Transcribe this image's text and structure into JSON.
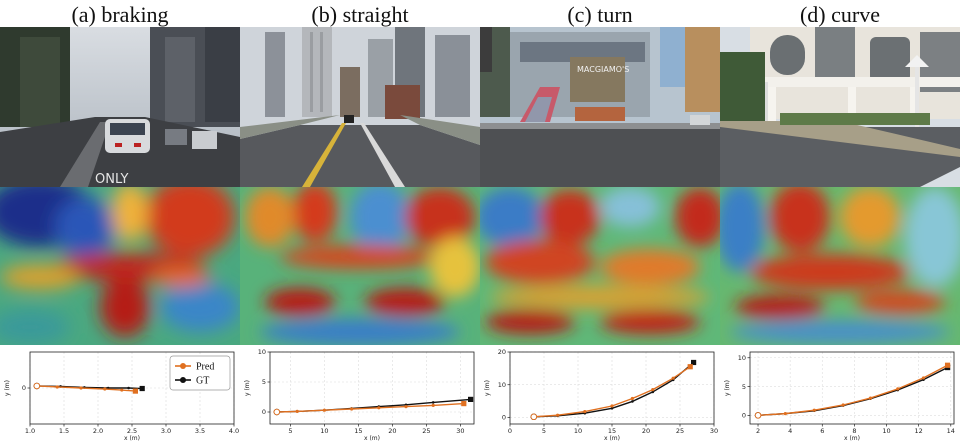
{
  "figure": {
    "panels": [
      {
        "id": "a",
        "title": "(a) braking",
        "scene": "city street with car ahead"
      },
      {
        "id": "b",
        "title": "(b) straight",
        "scene": "bridge road with skyline"
      },
      {
        "id": "c",
        "title": "(c) turn",
        "scene": "intersection with buildings"
      },
      {
        "id": "d",
        "title": "(d) curve",
        "scene": "curved road by white building"
      }
    ],
    "scene_text": {
      "road_marking_a": "ONLY",
      "building_sign_c": "MACGIAMO'S"
    },
    "colors": {
      "pred": "#e07020",
      "gt": "#111111",
      "grid": "#dddddd"
    }
  },
  "chart_data": [
    {
      "type": "line",
      "xlabel": "x (m)",
      "ylabel": "y (m)",
      "xlim": [
        1.0,
        4.0
      ],
      "ylim": [
        -0.35,
        0.35
      ],
      "xticks": [
        1.0,
        1.5,
        2.0,
        2.5,
        3.0,
        3.5,
        4.0
      ],
      "xtick_labels": [
        "1.0",
        "1.5",
        "2.0",
        "2.5",
        "3.0",
        "3.5",
        "4.0"
      ],
      "yticks": [
        0
      ],
      "ytick_labels": [
        "0"
      ],
      "legend": {
        "placement": "right",
        "entries": [
          "Pred",
          "GT"
        ]
      },
      "series": [
        {
          "name": "Pred",
          "x": [
            1.1,
            1.4,
            1.75,
            2.1,
            2.35,
            2.55
          ],
          "y": [
            0.02,
            0.01,
            0.0,
            -0.01,
            -0.02,
            -0.03
          ]
        },
        {
          "name": "GT",
          "x": [
            1.1,
            1.45,
            1.8,
            2.15,
            2.45,
            2.65
          ],
          "y": [
            0.02,
            0.015,
            0.005,
            0.0,
            0.0,
            -0.005
          ]
        }
      ]
    },
    {
      "type": "line",
      "xlabel": "x (m)",
      "ylabel": "y (m)",
      "xlim": [
        2,
        32
      ],
      "ylim": [
        -2,
        10
      ],
      "xticks": [
        5,
        10,
        15,
        20,
        25,
        30
      ],
      "xtick_labels": [
        "5",
        "10",
        "15",
        "20",
        "25",
        "30"
      ],
      "yticks": [
        0,
        5,
        10
      ],
      "ytick_labels": [
        "0",
        "5",
        "10"
      ],
      "series": [
        {
          "name": "Pred",
          "x": [
            3,
            6,
            10,
            14,
            18,
            22,
            26,
            30.5
          ],
          "y": [
            0,
            0.1,
            0.3,
            0.5,
            0.7,
            0.9,
            1.1,
            1.4
          ]
        },
        {
          "name": "GT",
          "x": [
            3,
            6,
            10,
            14,
            18,
            22,
            26,
            31.5
          ],
          "y": [
            0,
            0.1,
            0.3,
            0.6,
            0.9,
            1.2,
            1.6,
            2.1
          ]
        }
      ]
    },
    {
      "type": "line",
      "xlabel": "x (m)",
      "ylabel": "y (m)",
      "xlim": [
        0,
        30
      ],
      "ylim": [
        -2,
        20
      ],
      "xticks": [
        0,
        5,
        10,
        15,
        20,
        25,
        30
      ],
      "xtick_labels": [
        "0",
        "5",
        "10",
        "15",
        "20",
        "25",
        "30"
      ],
      "yticks": [
        0,
        10,
        20
      ],
      "ytick_labels": [
        "0",
        "10",
        "20"
      ],
      "series": [
        {
          "name": "Pred",
          "x": [
            3.5,
            7,
            11,
            15,
            18,
            21,
            24,
            26.5
          ],
          "y": [
            0.2,
            0.7,
            1.8,
            3.5,
            5.8,
            8.5,
            12,
            15.5
          ]
        },
        {
          "name": "GT",
          "x": [
            3.5,
            7,
            11,
            15,
            18,
            21,
            24,
            27
          ],
          "y": [
            0.2,
            0.5,
            1.3,
            2.8,
            4.9,
            7.8,
            11.5,
            16.8
          ]
        }
      ]
    },
    {
      "type": "line",
      "xlabel": "x (m)",
      "ylabel": "y (m)",
      "xlim": [
        1.5,
        14.2
      ],
      "ylim": [
        -1.5,
        11
      ],
      "xticks": [
        2,
        4,
        6,
        8,
        10,
        12,
        14
      ],
      "xtick_labels": [
        "2",
        "4",
        "6",
        "8",
        "10",
        "12",
        "14"
      ],
      "yticks": [
        0,
        5,
        10
      ],
      "ytick_labels": [
        "0",
        "5",
        "10"
      ],
      "series": [
        {
          "name": "Pred",
          "x": [
            2,
            3.7,
            5.5,
            7.3,
            9,
            10.7,
            12.3,
            13.8
          ],
          "y": [
            0,
            0.3,
            0.9,
            1.8,
            3.0,
            4.6,
            6.5,
            8.7
          ]
        },
        {
          "name": "GT",
          "x": [
            2,
            3.7,
            5.5,
            7.3,
            9,
            10.7,
            12.3,
            13.8
          ],
          "y": [
            0,
            0.3,
            0.8,
            1.7,
            2.9,
            4.4,
            6.2,
            8.3
          ]
        }
      ]
    }
  ]
}
